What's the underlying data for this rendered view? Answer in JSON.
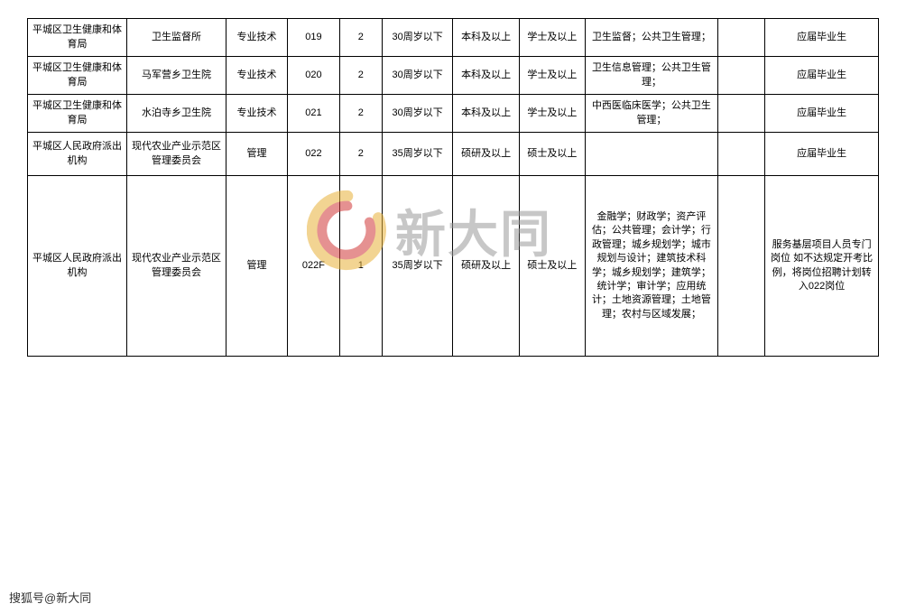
{
  "table": {
    "border_color": "#000000",
    "background": "#ffffff",
    "font_size": 11,
    "text_color": "#000000",
    "columns": [
      "col-0",
      "col-1",
      "col-2",
      "col-3",
      "col-4",
      "col-5",
      "col-6",
      "col-7",
      "col-8",
      "col-9",
      "col-10"
    ],
    "rows": [
      {
        "height_class": "row-short",
        "cells": [
          "平城区卫生健康和体育局",
          "卫生监督所",
          "专业技术",
          "019",
          "2",
          "30周岁以下",
          "本科及以上",
          "学士及以上",
          "卫生监督；公共卫生管理；",
          "",
          "应届毕业生"
        ]
      },
      {
        "height_class": "row-short",
        "cells": [
          "平城区卫生健康和体育局",
          "马军营乡卫生院",
          "专业技术",
          "020",
          "2",
          "30周岁以下",
          "本科及以上",
          "学士及以上",
          "卫生信息管理；公共卫生管理；",
          "",
          "应届毕业生"
        ]
      },
      {
        "height_class": "row-short",
        "cells": [
          "平城区卫生健康和体育局",
          "水泊寺乡卫生院",
          "专业技术",
          "021",
          "2",
          "30周岁以下",
          "本科及以上",
          "学士及以上",
          "中西医临床医学；公共卫生管理；",
          "",
          "应届毕业生"
        ]
      },
      {
        "height_class": "row-med",
        "cells": [
          "平城区人民政府派出机构",
          "现代农业产业示范区管理委员会",
          "管理",
          "022",
          "2",
          "35周岁以下",
          "硕研及以上",
          "硕士及以上",
          "",
          "",
          "应届毕业生"
        ]
      },
      {
        "height_class": "row-tall",
        "cells": [
          "平城区人民政府派出机构",
          "现代农业产业示范区管理委员会",
          "管理",
          "022F",
          "1",
          "35周岁以下",
          "硕研及以上",
          "硕士及以上",
          "金融学；财政学；资产评估；公共管理；会计学；行政管理；城乡规划学；城市规划与设计；建筑技术科学；城乡规划学；建筑学；统计学；审计学；应用统计；土地资源管理；土地管理；农村与区域发展；",
          "",
          "服务基层项目人员专门岗位 如不达规定开考比例，将岗位招聘计划转入022岗位"
        ]
      }
    ]
  },
  "watermark": {
    "text": "新大同",
    "text_color": "#9a9a9a",
    "logo_outer_color": "#e8b23a",
    "logo_inner_color": "#d13838",
    "opacity": 0.55
  },
  "footer": {
    "text": "搜狐号@新大同",
    "color": "#333333"
  }
}
